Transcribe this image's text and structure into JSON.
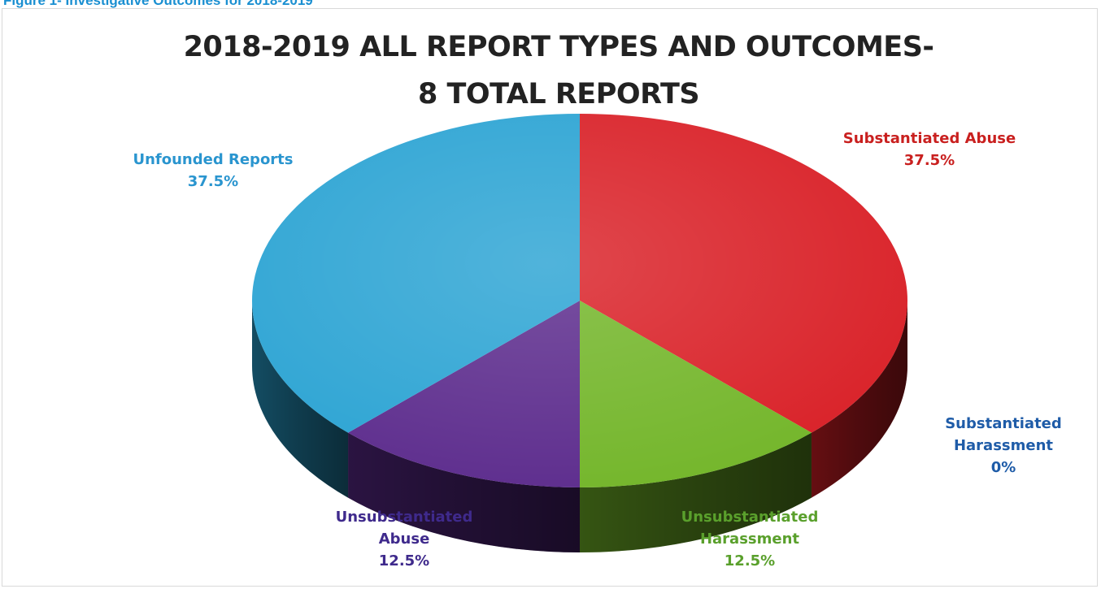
{
  "figure_caption": "Figure 1- Investigative Outcomes for 2018-2019",
  "chart_data": {
    "type": "pie",
    "title": "2018-2019 ALL REPORT TYPES AND OUTCOMES-",
    "subtitle": "8 TOTAL REPORTS",
    "slices": [
      {
        "label_lines": [
          "Substantiated Abuse"
        ],
        "value_text": "37.5%",
        "value": 37.5,
        "color": "#d91f26",
        "label_color": "#c9201f"
      },
      {
        "label_lines": [
          "Unsubstantiated",
          "Harassment"
        ],
        "value_text": "12.5%",
        "value": 12.5,
        "color": "#72b528",
        "label_color": "#5aa02c"
      },
      {
        "label_lines": [
          "Unsubstantiated",
          "Abuse"
        ],
        "value_text": "12.5%",
        "value": 12.5,
        "color": "#5b2a8c",
        "label_color": "#3f2a8c"
      },
      {
        "label_lines": [
          "Unfounded Reports"
        ],
        "value_text": "37.5%",
        "value": 37.5,
        "color": "#2aa3d3",
        "label_color": "#2a95cf"
      },
      {
        "label_lines": [
          "Substantiated",
          "Harassment"
        ],
        "value_text": "0%",
        "value": 0,
        "color": "#1f5ca8",
        "label_color": "#1f5ca8"
      }
    ]
  }
}
